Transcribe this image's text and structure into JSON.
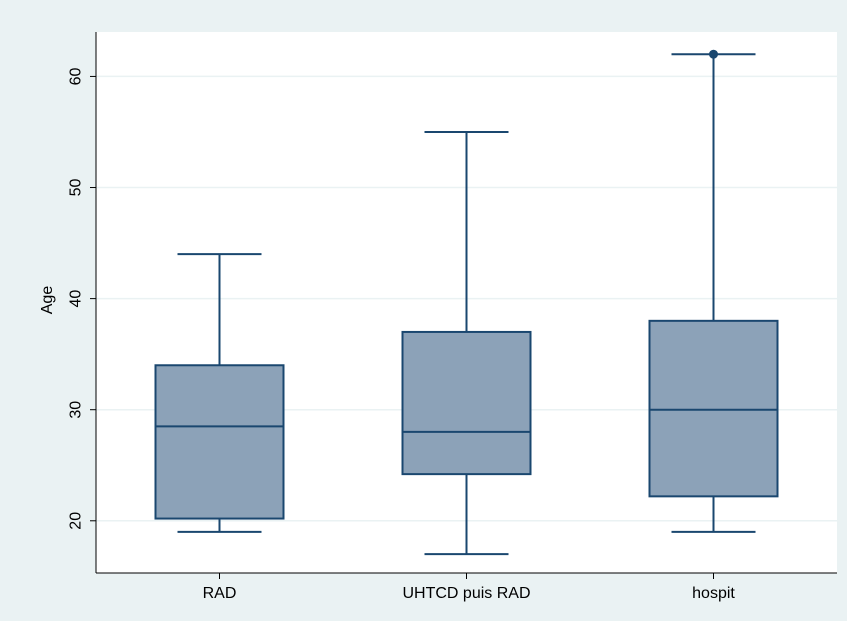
{
  "colors": {
    "outer_background": "#eaf2f3",
    "plot_background": "#ffffff",
    "box_fill": "#8ca2b8",
    "box_stroke": "#1a476f",
    "gridline": "#eaf2f3",
    "axis": "#000000"
  },
  "chart_data": {
    "type": "box",
    "title": "",
    "xlabel": "",
    "ylabel": "Age",
    "ylim": [
      15.3,
      64
    ],
    "yticks": [
      20,
      30,
      40,
      50,
      60
    ],
    "grid": true,
    "categories": [
      "RAD",
      "UHTCD puis RAD",
      "hospit"
    ],
    "boxes": [
      {
        "category": "RAD",
        "whisker_low": 19,
        "q1": 20.2,
        "median": 28.5,
        "q3": 34,
        "whisker_high": 44,
        "outliers": []
      },
      {
        "category": "UHTCD puis RAD",
        "whisker_low": 17,
        "q1": 24.2,
        "median": 28,
        "q3": 37,
        "whisker_high": 55,
        "outliers": []
      },
      {
        "category": "hospit",
        "whisker_low": 19,
        "q1": 22.2,
        "median": 30,
        "q3": 38,
        "whisker_high": 62,
        "outliers": [
          62
        ]
      }
    ]
  }
}
